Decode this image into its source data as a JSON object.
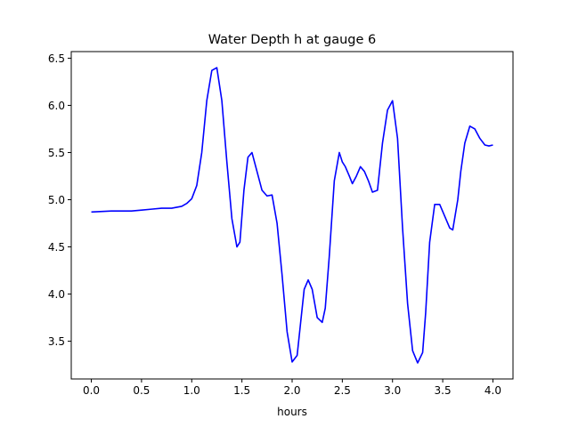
{
  "chart_data": {
    "type": "line",
    "title": "Water Depth h at gauge 6",
    "xlabel": "hours",
    "ylabel": "",
    "xlim": [
      -0.2,
      4.2
    ],
    "ylim": [
      3.1,
      6.57
    ],
    "xticks": [
      0.0,
      0.5,
      1.0,
      1.5,
      2.0,
      2.5,
      3.0,
      3.5,
      4.0
    ],
    "xtick_labels": [
      "0.0",
      "0.5",
      "1.0",
      "1.5",
      "2.0",
      "2.5",
      "3.0",
      "3.5",
      "4.0"
    ],
    "yticks": [
      3.5,
      4.0,
      4.5,
      5.0,
      5.5,
      6.0,
      6.5
    ],
    "ytick_labels": [
      "3.5",
      "4.0",
      "4.5",
      "5.0",
      "5.5",
      "6.0",
      "6.5"
    ],
    "grid": false,
    "series": [
      {
        "color": "#0000ff",
        "x": [
          0.0,
          0.2,
          0.4,
          0.5,
          0.6,
          0.7,
          0.8,
          0.9,
          0.95,
          1.0,
          1.05,
          1.1,
          1.15,
          1.2,
          1.25,
          1.3,
          1.35,
          1.4,
          1.45,
          1.48,
          1.52,
          1.56,
          1.6,
          1.65,
          1.7,
          1.75,
          1.8,
          1.85,
          1.9,
          1.95,
          2.0,
          2.05,
          2.08,
          2.12,
          2.16,
          2.2,
          2.25,
          2.3,
          2.33,
          2.37,
          2.42,
          2.47,
          2.5,
          2.53,
          2.57,
          2.6,
          2.64,
          2.68,
          2.72,
          2.76,
          2.8,
          2.85,
          2.9,
          2.95,
          3.0,
          3.05,
          3.1,
          3.15,
          3.2,
          3.25,
          3.3,
          3.33,
          3.37,
          3.42,
          3.47,
          3.53,
          3.57,
          3.6,
          3.65,
          3.68,
          3.72,
          3.77,
          3.82,
          3.87,
          3.92,
          3.96,
          4.0
        ],
        "y": [
          4.87,
          4.88,
          4.88,
          4.89,
          4.9,
          4.91,
          4.91,
          4.93,
          4.96,
          5.01,
          5.15,
          5.5,
          6.05,
          6.37,
          6.4,
          6.05,
          5.4,
          4.8,
          4.5,
          4.55,
          5.1,
          5.45,
          5.5,
          5.3,
          5.1,
          5.04,
          5.05,
          4.75,
          4.2,
          3.6,
          3.28,
          3.35,
          3.65,
          4.05,
          4.15,
          4.05,
          3.75,
          3.7,
          3.85,
          4.4,
          5.2,
          5.5,
          5.4,
          5.35,
          5.25,
          5.17,
          5.25,
          5.35,
          5.3,
          5.2,
          5.08,
          5.1,
          5.6,
          5.95,
          6.05,
          5.65,
          4.7,
          3.9,
          3.4,
          3.27,
          3.38,
          3.8,
          4.55,
          4.95,
          4.95,
          4.8,
          4.7,
          4.68,
          5.0,
          5.3,
          5.6,
          5.78,
          5.75,
          5.65,
          5.58,
          5.57,
          5.58
        ]
      }
    ]
  }
}
